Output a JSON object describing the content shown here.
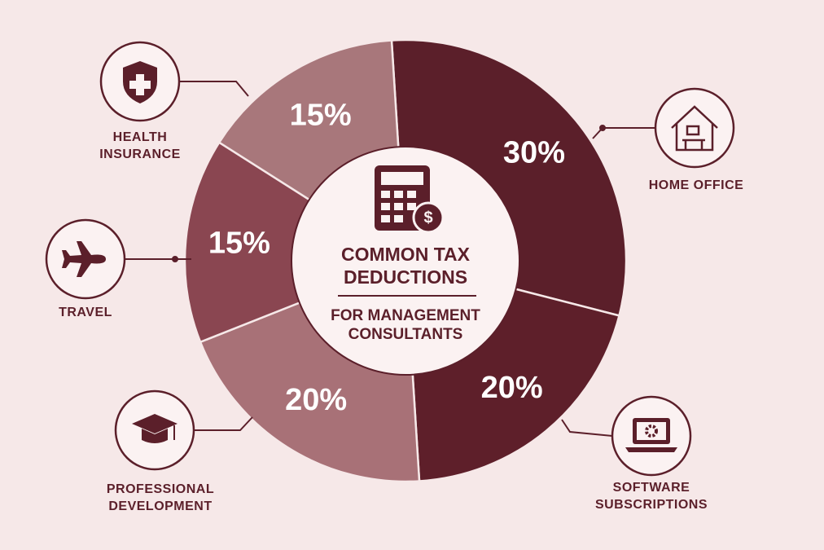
{
  "chart_data": {
    "type": "pie",
    "title": "COMMON TAX DEDUCTIONS",
    "subtitle": "FOR MANAGEMENT CONSULTANTS",
    "categories": [
      "HOME OFFICE",
      "SOFTWARE SUBSCRIPTIONS",
      "PROFESSIONAL DEVELOPMENT",
      "TRAVEL",
      "HEALTH INSURANCE"
    ],
    "values": [
      30,
      20,
      20,
      15,
      15
    ],
    "value_labels": [
      "30%",
      "20%",
      "20%",
      "15%",
      "15%"
    ],
    "colors": [
      "#5b1f2a",
      "#5e1f2a",
      "#a87177",
      "#8a4651",
      "#a8777b"
    ]
  }
}
